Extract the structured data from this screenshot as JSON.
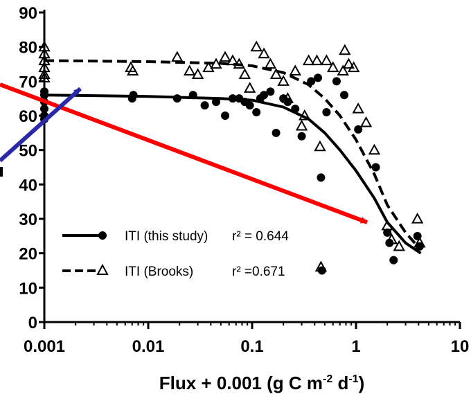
{
  "chart_data": {
    "type": "scatter",
    "title": "",
    "xlabel": "Flux + 0.001 (g C m-2 d-1)",
    "xlabel_parts": {
      "base": "Flux + 0.001 (g C m",
      "exp1": "-2",
      "mid": " d",
      "exp2": "-1",
      "end": ")"
    },
    "ylabel": "",
    "x_scale": "log",
    "xlim": [
      0.001,
      10
    ],
    "ylim": [
      0,
      90
    ],
    "x_ticks": [
      {
        "value": 0.001,
        "label": "0.001"
      },
      {
        "value": 0.01,
        "label": "0.01"
      },
      {
        "value": 0.1,
        "label": "0.1"
      },
      {
        "value": 1,
        "label": "1"
      },
      {
        "value": 10,
        "label": "10"
      }
    ],
    "y_ticks": [
      {
        "value": 0,
        "label": "0"
      },
      {
        "value": 10,
        "label": "10"
      },
      {
        "value": 20,
        "label": "20"
      },
      {
        "value": 30,
        "label": "30"
      },
      {
        "value": 40,
        "label": "40"
      },
      {
        "value": 50,
        "label": "50"
      },
      {
        "value": 60,
        "label": "60"
      },
      {
        "value": 70,
        "label": "70"
      },
      {
        "value": 80,
        "label": "80"
      },
      {
        "value": 90,
        "label": "90"
      }
    ],
    "grid": false,
    "legend_position": "bottom-left",
    "series": [
      {
        "name": "ITI (this study)",
        "r2_label": "r² = 0.644",
        "marker": "circle",
        "line_style": "solid",
        "color": "#000000",
        "points": [
          [
            0.001,
            60
          ],
          [
            0.001,
            62
          ],
          [
            0.001,
            64
          ],
          [
            0.001,
            66
          ],
          [
            0.001,
            67
          ],
          [
            0.001,
            59
          ],
          [
            0.007,
            65
          ],
          [
            0.0072,
            66
          ],
          [
            0.019,
            65
          ],
          [
            0.027,
            66
          ],
          [
            0.035,
            63
          ],
          [
            0.045,
            64
          ],
          [
            0.055,
            60
          ],
          [
            0.065,
            65
          ],
          [
            0.075,
            65
          ],
          [
            0.085,
            64
          ],
          [
            0.095,
            63
          ],
          [
            0.11,
            61
          ],
          [
            0.12,
            65
          ],
          [
            0.13,
            66
          ],
          [
            0.15,
            67
          ],
          [
            0.17,
            55
          ],
          [
            0.2,
            65
          ],
          [
            0.22,
            64
          ],
          [
            0.26,
            62
          ],
          [
            0.3,
            54
          ],
          [
            0.37,
            70
          ],
          [
            0.43,
            71
          ],
          [
            0.46,
            42
          ],
          [
            0.52,
            61
          ],
          [
            0.65,
            70
          ],
          [
            0.77,
            66
          ],
          [
            1.05,
            56
          ],
          [
            1.55,
            45
          ],
          [
            2.0,
            26
          ],
          [
            2.1,
            23
          ],
          [
            2.3,
            18
          ],
          [
            3.9,
            25
          ],
          [
            4.1,
            22
          ],
          [
            0.47,
            15
          ]
        ],
        "fit": [
          [
            0.001,
            66
          ],
          [
            0.01,
            65.6
          ],
          [
            0.05,
            65
          ],
          [
            0.1,
            64.5
          ],
          [
            0.2,
            62.5
          ],
          [
            0.35,
            59
          ],
          [
            0.5,
            55
          ],
          [
            0.7,
            50
          ],
          [
            1.0,
            44
          ],
          [
            1.5,
            36
          ],
          [
            2.0,
            29
          ],
          [
            3.0,
            23
          ],
          [
            4.2,
            20
          ]
        ]
      },
      {
        "name": "ITI (Brooks)",
        "r2_label": "r² =0.671",
        "marker": "triangle",
        "line_style": "dashed",
        "color": "#000000",
        "points": [
          [
            0.001,
            72
          ],
          [
            0.001,
            74
          ],
          [
            0.001,
            76
          ],
          [
            0.001,
            78
          ],
          [
            0.001,
            80
          ],
          [
            0.001,
            71
          ],
          [
            0.0068,
            74
          ],
          [
            0.0071,
            73
          ],
          [
            0.019,
            77
          ],
          [
            0.025,
            73
          ],
          [
            0.03,
            72
          ],
          [
            0.038,
            74
          ],
          [
            0.045,
            75
          ],
          [
            0.055,
            77
          ],
          [
            0.065,
            76
          ],
          [
            0.075,
            75
          ],
          [
            0.085,
            72
          ],
          [
            0.095,
            68
          ],
          [
            0.11,
            80
          ],
          [
            0.13,
            78
          ],
          [
            0.15,
            75
          ],
          [
            0.17,
            72
          ],
          [
            0.2,
            70
          ],
          [
            0.22,
            65
          ],
          [
            0.26,
            73
          ],
          [
            0.3,
            57
          ],
          [
            0.32,
            60
          ],
          [
            0.35,
            76
          ],
          [
            0.42,
            76
          ],
          [
            0.45,
            51
          ],
          [
            0.52,
            76
          ],
          [
            0.6,
            74
          ],
          [
            0.75,
            73
          ],
          [
            0.78,
            79
          ],
          [
            0.85,
            75
          ],
          [
            0.95,
            74
          ],
          [
            1.05,
            62
          ],
          [
            1.25,
            58
          ],
          [
            1.5,
            50
          ],
          [
            2.0,
            28
          ],
          [
            2.2,
            24
          ],
          [
            2.6,
            22
          ],
          [
            3.9,
            30
          ],
          [
            4.1,
            23
          ],
          [
            0.46,
            16
          ]
        ],
        "fit": [
          [
            0.001,
            76
          ],
          [
            0.01,
            75.7
          ],
          [
            0.05,
            75.2
          ],
          [
            0.1,
            74.5
          ],
          [
            0.2,
            72.5
          ],
          [
            0.35,
            69
          ],
          [
            0.5,
            65
          ],
          [
            0.7,
            60
          ],
          [
            1.0,
            53
          ],
          [
            1.5,
            43
          ],
          [
            2.0,
            34
          ],
          [
            3.0,
            26
          ],
          [
            4.2,
            21
          ]
        ]
      }
    ],
    "annotations": [
      {
        "type": "arrow",
        "color": "#ff0000",
        "from": "upper-left",
        "to": "lower-right"
      },
      {
        "type": "arrow",
        "color": "#2a2aa8",
        "from": "lower-left",
        "to": "upper-left"
      }
    ]
  }
}
